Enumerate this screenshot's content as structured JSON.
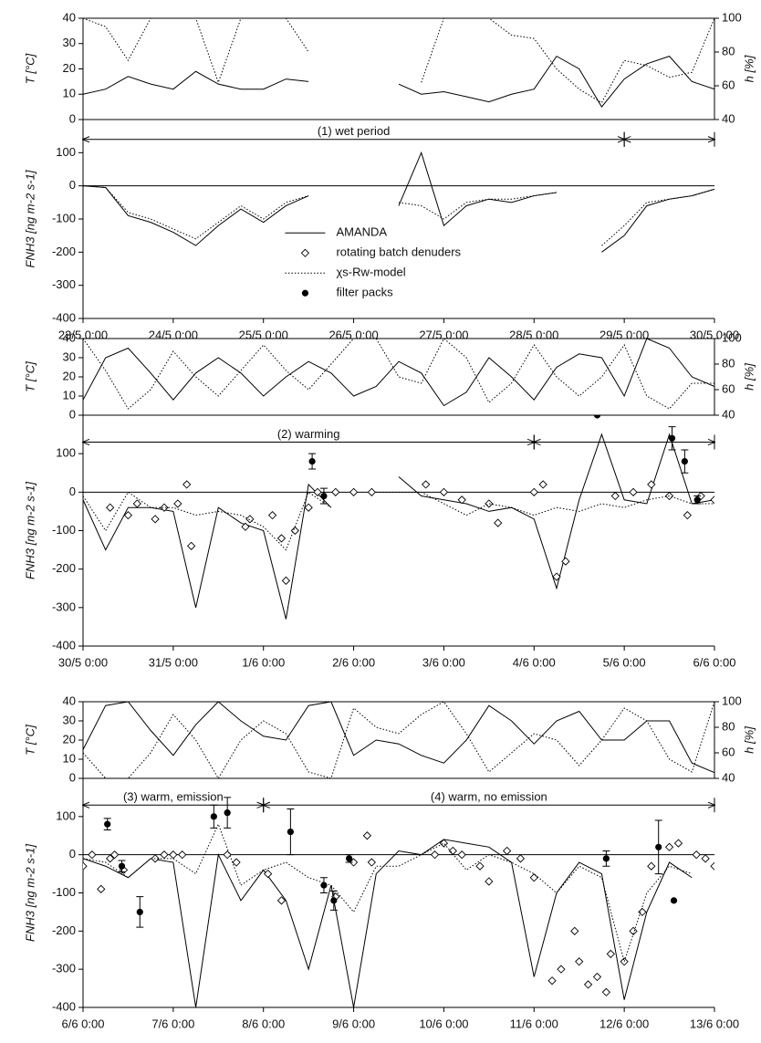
{
  "chart_data": [
    {
      "type": "line",
      "ylabel": "T [°C]",
      "y2label": "h [%]",
      "xlim": [
        0,
        7
      ],
      "ylim": [
        0,
        40
      ],
      "yticks": [
        0,
        10,
        20,
        30,
        40
      ],
      "y2lim": [
        40,
        100
      ],
      "y2ticks": [
        40,
        60,
        80,
        100
      ],
      "x": [
        0,
        0.25,
        0.5,
        0.75,
        1,
        1.25,
        1.5,
        1.75,
        2,
        2.25,
        2.5,
        2.75,
        3,
        3.25,
        3.5,
        3.75,
        4,
        4.25,
        4.5,
        4.75,
        5,
        5.25,
        5.5,
        5.75,
        6,
        6.25,
        6.5,
        6.75,
        7
      ],
      "series": [
        {
          "color": "#000",
          "style": "solid",
          "values": [
            10,
            12,
            17,
            14,
            12,
            19,
            14,
            12,
            12,
            16,
            15,
            null,
            null,
            null,
            14,
            10,
            11,
            9,
            7,
            10,
            12,
            25,
            20,
            5,
            16,
            22,
            25,
            15,
            12
          ]
        },
        {
          "color": "#000",
          "style": "dotted",
          "axis": "y2",
          "values": [
            100,
            95,
            75,
            100,
            100,
            100,
            62,
            100,
            100,
            100,
            80,
            null,
            null,
            null,
            null,
            62,
            100,
            100,
            100,
            90,
            88,
            70,
            58,
            50,
            75,
            72,
            65,
            68,
            100
          ]
        }
      ]
    },
    {
      "type": "line",
      "ylabel": "FNH3 [ng m-2 s-1]",
      "xlim": [
        0,
        7
      ],
      "ylim": [
        -400,
        200
      ],
      "yticks": [
        -400,
        -300,
        -200,
        -100,
        0,
        100
      ],
      "hline": 0,
      "legend": "center",
      "xticks": [
        {
          "value": 0,
          "label": "23/5 0:00"
        },
        {
          "value": 1,
          "label": "24/5 0:00"
        },
        {
          "value": 2,
          "label": "25/5 0:00"
        },
        {
          "value": 3,
          "label": "26/5 0:00"
        },
        {
          "value": 4,
          "label": "27/5 0:00"
        },
        {
          "value": 5,
          "label": "28/5 0:00"
        },
        {
          "value": 6,
          "label": "29/5 0:00"
        },
        {
          "value": 7,
          "label": "30/5 0:00"
        }
      ],
      "periods": [
        {
          "label": "(1) wet period",
          "x": [
            0,
            6
          ]
        },
        {
          "x": [
            6,
            7
          ]
        }
      ],
      "period_y": 140,
      "x": [
        0,
        0.25,
        0.5,
        0.75,
        1,
        1.25,
        1.5,
        1.75,
        2,
        2.25,
        2.5,
        2.75,
        3,
        3.25,
        3.5,
        3.75,
        4,
        4.25,
        4.5,
        4.75,
        5,
        5.25,
        5.5,
        5.75,
        6,
        6.25,
        6.5,
        6.75,
        7
      ],
      "series": [
        {
          "name": "AMANDA",
          "color": "#000",
          "style": "solid",
          "values": [
            0,
            -5,
            -90,
            -110,
            -140,
            -180,
            -120,
            -70,
            -110,
            -60,
            -30,
            null,
            null,
            null,
            -60,
            100,
            -120,
            -60,
            -40,
            -50,
            -30,
            -20,
            null,
            -200,
            -150,
            -60,
            -40,
            -30,
            -10
          ]
        },
        {
          "name": "rotating batch denuders",
          "color": "#000",
          "type": "scatter",
          "marker": "diamond",
          "x": [],
          "values": []
        },
        {
          "name": "χs-Rw-model",
          "color": "#000",
          "style": "dotted",
          "values": [
            0,
            -5,
            -80,
            -100,
            -130,
            -160,
            -110,
            -60,
            -100,
            -50,
            -30,
            null,
            null,
            null,
            -50,
            -60,
            -100,
            -50,
            -40,
            -40,
            -30,
            -20,
            null,
            -180,
            -120,
            -50,
            -40,
            -30,
            -10
          ]
        },
        {
          "name": "filter packs",
          "color": "#000",
          "type": "scatter",
          "marker": "dot",
          "x": [],
          "values": [],
          "errors": []
        }
      ]
    },
    {
      "type": "line",
      "ylabel": "T [°C]",
      "y2label": "h [%]",
      "xlim": [
        0,
        7
      ],
      "ylim": [
        0,
        40
      ],
      "yticks": [
        0,
        10,
        20,
        30,
        40
      ],
      "y2lim": [
        40,
        100
      ],
      "y2ticks": [
        40,
        60,
        80,
        100
      ],
      "x": [
        0,
        0.25,
        0.5,
        0.75,
        1,
        1.25,
        1.5,
        1.75,
        2,
        2.25,
        2.5,
        2.75,
        3,
        3.25,
        3.5,
        3.75,
        4,
        4.25,
        4.5,
        4.75,
        5,
        5.25,
        5.5,
        5.75,
        6,
        6.25,
        6.5,
        6.75,
        7
      ],
      "series": [
        {
          "color": "#000",
          "style": "solid",
          "values": [
            8,
            30,
            35,
            22,
            8,
            22,
            30,
            22,
            10,
            20,
            28,
            22,
            10,
            15,
            28,
            22,
            5,
            12,
            30,
            20,
            8,
            25,
            32,
            30,
            10,
            40,
            35,
            20,
            15
          ]
        },
        {
          "color": "#000",
          "style": "dotted",
          "axis": "y2",
          "values": [
            100,
            75,
            45,
            60,
            90,
            70,
            55,
            75,
            95,
            75,
            60,
            80,
            100,
            100,
            70,
            65,
            100,
            85,
            50,
            65,
            95,
            70,
            55,
            70,
            95,
            55,
            45,
            65,
            65
          ]
        }
      ]
    },
    {
      "type": "line",
      "ylabel": "FNH3 [ng m-2 s-1]",
      "xlim": [
        0,
        7
      ],
      "ylim": [
        -400,
        200
      ],
      "yticks": [
        -400,
        -300,
        -200,
        -100,
        0,
        100
      ],
      "hline": 0,
      "xticks": [
        {
          "value": 0,
          "label": "30/5 0:00"
        },
        {
          "value": 1,
          "label": "31/5 0:00"
        },
        {
          "value": 2,
          "label": "1/6 0:00"
        },
        {
          "value": 3,
          "label": "2/6 0:00"
        },
        {
          "value": 4,
          "label": "3/6 0:00"
        },
        {
          "value": 5,
          "label": "4/6 0:00"
        },
        {
          "value": 6,
          "label": "5/6 0:00"
        },
        {
          "value": 7,
          "label": "6/6 0:00"
        }
      ],
      "periods": [
        {
          "label": "(2) warming",
          "x": [
            0,
            5
          ]
        },
        {
          "x": [
            5,
            7
          ]
        }
      ],
      "period_y": 130,
      "x": [
        0,
        0.25,
        0.5,
        0.75,
        1,
        1.25,
        1.5,
        1.75,
        2,
        2.25,
        2.5,
        2.75,
        3,
        3.25,
        3.5,
        3.75,
        4,
        4.25,
        4.5,
        4.75,
        5,
        5.25,
        5.5,
        5.75,
        6,
        6.25,
        6.5,
        6.75,
        7
      ],
      "series": [
        {
          "color": "#000",
          "style": "solid",
          "values": [
            -20,
            -150,
            -40,
            -40,
            -50,
            -300,
            -40,
            -80,
            -100,
            -330,
            20,
            -40,
            null,
            null,
            40,
            -10,
            -20,
            -30,
            -50,
            -40,
            -70,
            -250,
            -20,
            150,
            -20,
            -30,
            150,
            -30,
            -20
          ]
        },
        {
          "color": "#000",
          "type": "scatter",
          "marker": "diamond",
          "x": [
            0.3,
            0.5,
            0.6,
            0.8,
            0.9,
            1.05,
            1.15,
            1.2,
            1.8,
            1.85,
            2.1,
            2.2,
            2.25,
            2.35,
            2.5,
            2.6,
            2.8,
            3.0,
            3.2,
            3.8,
            4.0,
            4.2,
            4.5,
            4.6,
            5.0,
            5.1,
            5.25,
            5.35,
            5.9,
            6.1,
            6.3,
            6.5,
            6.7,
            6.85,
            7.0
          ],
          "values": [
            -40,
            -60,
            -30,
            -70,
            -40,
            -30,
            20,
            -140,
            -90,
            -70,
            -60,
            -120,
            -230,
            -100,
            -40,
            0,
            0,
            0,
            0,
            20,
            0,
            -20,
            -30,
            -80,
            0,
            20,
            -220,
            -180,
            -10,
            0,
            20,
            -10,
            -60,
            -10,
            -20
          ]
        },
        {
          "color": "#000",
          "style": "dotted",
          "values": [
            -10,
            -100,
            0,
            -40,
            -40,
            -60,
            -50,
            -60,
            -90,
            -150,
            0,
            -40,
            null,
            0,
            0,
            0,
            -30,
            -60,
            -30,
            -40,
            -60,
            -40,
            -50,
            -30,
            -40,
            -20,
            -10,
            -30,
            -30
          ]
        },
        {
          "color": "#000",
          "type": "scatter",
          "marker": "dot",
          "x": [
            2.54,
            2.67,
            5.7,
            6.53,
            6.67,
            6.81
          ],
          "values": [
            80,
            -10,
            200,
            140,
            80,
            -20
          ],
          "errors": [
            20,
            20,
            0,
            30,
            30,
            10
          ]
        }
      ]
    },
    {
      "type": "line",
      "ylabel": "T [°C]",
      "y2label": "h [%]",
      "xlim": [
        0,
        7
      ],
      "ylim": [
        0,
        40
      ],
      "yticks": [
        0,
        10,
        20,
        30,
        40
      ],
      "y2lim": [
        40,
        100
      ],
      "y2ticks": [
        40,
        60,
        80,
        100
      ],
      "x": [
        0,
        0.25,
        0.5,
        0.75,
        1,
        1.25,
        1.5,
        1.75,
        2,
        2.25,
        2.5,
        2.75,
        3,
        3.25,
        3.5,
        3.75,
        4,
        4.25,
        4.5,
        4.75,
        5,
        5.25,
        5.5,
        5.75,
        6,
        6.25,
        6.5,
        6.75,
        7
      ],
      "series": [
        {
          "color": "#000",
          "style": "solid",
          "values": [
            15,
            38,
            40,
            25,
            12,
            28,
            40,
            30,
            22,
            20,
            38,
            40,
            12,
            20,
            18,
            12,
            8,
            20,
            38,
            30,
            18,
            30,
            35,
            20,
            20,
            30,
            30,
            8,
            3
          ]
        },
        {
          "color": "#000",
          "style": "dotted",
          "axis": "y2",
          "values": [
            60,
            40,
            40,
            60,
            90,
            70,
            40,
            70,
            85,
            75,
            45,
            40,
            95,
            80,
            75,
            90,
            100,
            75,
            45,
            60,
            75,
            70,
            50,
            70,
            95,
            85,
            55,
            45,
            100
          ]
        }
      ]
    },
    {
      "type": "line",
      "ylabel": "FNH3 [ng m-2 s-1]",
      "xlim": [
        0,
        7
      ],
      "ylim": [
        -400,
        200
      ],
      "yticks": [
        -400,
        -300,
        -200,
        -100,
        0,
        100
      ],
      "hline": 0,
      "xticks": [
        {
          "value": 0,
          "label": "6/6 0:00"
        },
        {
          "value": 1,
          "label": "7/6 0:00"
        },
        {
          "value": 2,
          "label": "8/6 0:00"
        },
        {
          "value": 3,
          "label": "9/6 0:00"
        },
        {
          "value": 4,
          "label": "10/6 0:00"
        },
        {
          "value": 5,
          "label": "11/6 0:00"
        },
        {
          "value": 6,
          "label": "12/6 0:00"
        },
        {
          "value": 7,
          "label": "13/6 0:00"
        }
      ],
      "periods": [
        {
          "label": "(3) warm, emission",
          "x": [
            0,
            2
          ]
        },
        {
          "label": "(4) warm, no emission",
          "x": [
            2,
            7
          ]
        }
      ],
      "period_y": 130,
      "x": [
        0,
        0.25,
        0.5,
        0.75,
        1,
        1.25,
        1.5,
        1.75,
        2,
        2.25,
        2.5,
        2.75,
        3,
        3.25,
        3.5,
        3.75,
        4,
        4.25,
        4.5,
        4.75,
        5,
        5.25,
        5.5,
        5.75,
        6,
        6.25,
        6.5,
        6.75,
        7
      ],
      "series": [
        {
          "color": "#000",
          "style": "solid",
          "values": [
            -10,
            -30,
            -60,
            -10,
            -20,
            -400,
            0,
            -120,
            -40,
            -120,
            -300,
            -80,
            -400,
            -50,
            10,
            0,
            40,
            30,
            20,
            -20,
            -320,
            -100,
            -20,
            -50,
            -380,
            -150,
            -20,
            -60,
            null
          ]
        },
        {
          "color": "#000",
          "type": "scatter",
          "marker": "diamond",
          "x": [
            0,
            0.1,
            0.2,
            0.3,
            0.35,
            0.45,
            0.8,
            0.9,
            1.0,
            1.1,
            1.6,
            1.7,
            2.05,
            2.2,
            2.8,
            3.0,
            3.15,
            3.2,
            3.9,
            4.0,
            4.1,
            4.2,
            4.4,
            4.5,
            4.7,
            4.85,
            5.0,
            5.2,
            5.3,
            5.45,
            5.5,
            5.6,
            5.7,
            5.8,
            5.85,
            6.0,
            6.1,
            6.2,
            6.3,
            6.5,
            6.6,
            6.8,
            6.9,
            7.0
          ],
          "values": [
            -30,
            0,
            -90,
            -10,
            0,
            -40,
            -10,
            0,
            0,
            0,
            0,
            -20,
            -50,
            -120,
            -110,
            -20,
            50,
            -20,
            0,
            30,
            10,
            0,
            -30,
            -70,
            10,
            -10,
            -60,
            -330,
            -300,
            -200,
            -280,
            -340,
            -320,
            -360,
            -260,
            -280,
            -200,
            -150,
            -30,
            20,
            30,
            0,
            -10,
            -30
          ]
        },
        {
          "color": "#000",
          "style": "dotted",
          "values": [
            -10,
            -20,
            -60,
            -10,
            -10,
            -50,
            80,
            -80,
            -40,
            -20,
            -60,
            -80,
            -150,
            -30,
            -30,
            0,
            30,
            -40,
            0,
            -20,
            -50,
            -100,
            -30,
            -60,
            -280,
            -100,
            -30,
            -50,
            null
          ]
        },
        {
          "color": "#000",
          "type": "scatter",
          "marker": "dot",
          "x": [
            0.27,
            0.43,
            0.63,
            1.45,
            1.6,
            2.3,
            2.67,
            2.78,
            2.95,
            5.8,
            6.38,
            6.55
          ],
          "values": [
            80,
            -30,
            -150,
            100,
            110,
            60,
            -80,
            -120,
            -10,
            -10,
            20,
            -120
          ],
          "errors": [
            15,
            15,
            40,
            30,
            40,
            60,
            20,
            25,
            10,
            20,
            70,
            0
          ]
        }
      ]
    }
  ]
}
